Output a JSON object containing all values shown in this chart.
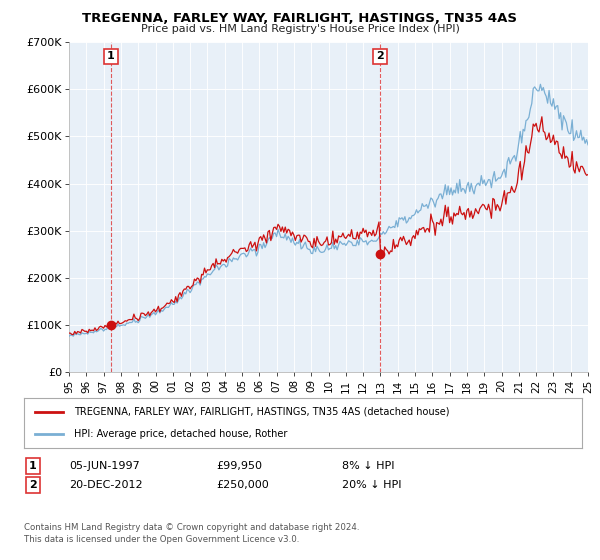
{
  "title": "TREGENNA, FARLEY WAY, FAIRLIGHT, HASTINGS, TN35 4AS",
  "subtitle": "Price paid vs. HM Land Registry's House Price Index (HPI)",
  "xlim": [
    1995,
    2025
  ],
  "ylim": [
    0,
    700000
  ],
  "yticks": [
    0,
    100000,
    200000,
    300000,
    400000,
    500000,
    600000,
    700000
  ],
  "ytick_labels": [
    "£0",
    "£100K",
    "£200K",
    "£300K",
    "£400K",
    "£500K",
    "£600K",
    "£700K"
  ],
  "xtick_years": [
    1995,
    1996,
    1997,
    1998,
    1999,
    2000,
    2001,
    2002,
    2003,
    2004,
    2005,
    2006,
    2007,
    2008,
    2009,
    2010,
    2011,
    2012,
    2013,
    2014,
    2015,
    2016,
    2017,
    2018,
    2019,
    2020,
    2021,
    2022,
    2023,
    2024,
    2025
  ],
  "hpi_color": "#7aafd4",
  "price_color": "#cc1111",
  "marker_color": "#cc1111",
  "dashed_color": "#dd3333",
  "background_plot": "#e8f0f8",
  "grid_color": "#c8d8e8",
  "sale1_year": 1997.43,
  "sale1_price": 99950,
  "sale1_label": "1",
  "sale1_date": "05-JUN-1997",
  "sale1_pct": "8% ↓ HPI",
  "sale2_year": 2012.97,
  "sale2_price": 250000,
  "sale2_label": "2",
  "sale2_date": "20-DEC-2012",
  "sale2_pct": "20% ↓ HPI",
  "legend1_label": "TREGENNA, FARLEY WAY, FAIRLIGHT, HASTINGS, TN35 4AS (detached house)",
  "legend2_label": "HPI: Average price, detached house, Rother",
  "footer1": "Contains HM Land Registry data © Crown copyright and database right 2024.",
  "footer2": "This data is licensed under the Open Government Licence v3.0.",
  "hpi_anchors_years": [
    1995,
    1996,
    1997,
    1998,
    1999,
    2000,
    2001,
    2002,
    2003,
    2004,
    2005,
    2006,
    2007,
    2008,
    2009,
    2010,
    2011,
    2012,
    2013,
    2014,
    2015,
    2016,
    2017,
    2018,
    2019,
    2020,
    2021,
    2022,
    2023,
    2024,
    2025
  ],
  "hpi_anchors_vals": [
    78000,
    83000,
    91000,
    100000,
    110000,
    124000,
    145000,
    175000,
    205000,
    230000,
    245000,
    265000,
    295000,
    280000,
    255000,
    265000,
    270000,
    275000,
    290000,
    315000,
    340000,
    365000,
    385000,
    390000,
    400000,
    415000,
    475000,
    620000,
    570000,
    510000,
    490000
  ]
}
